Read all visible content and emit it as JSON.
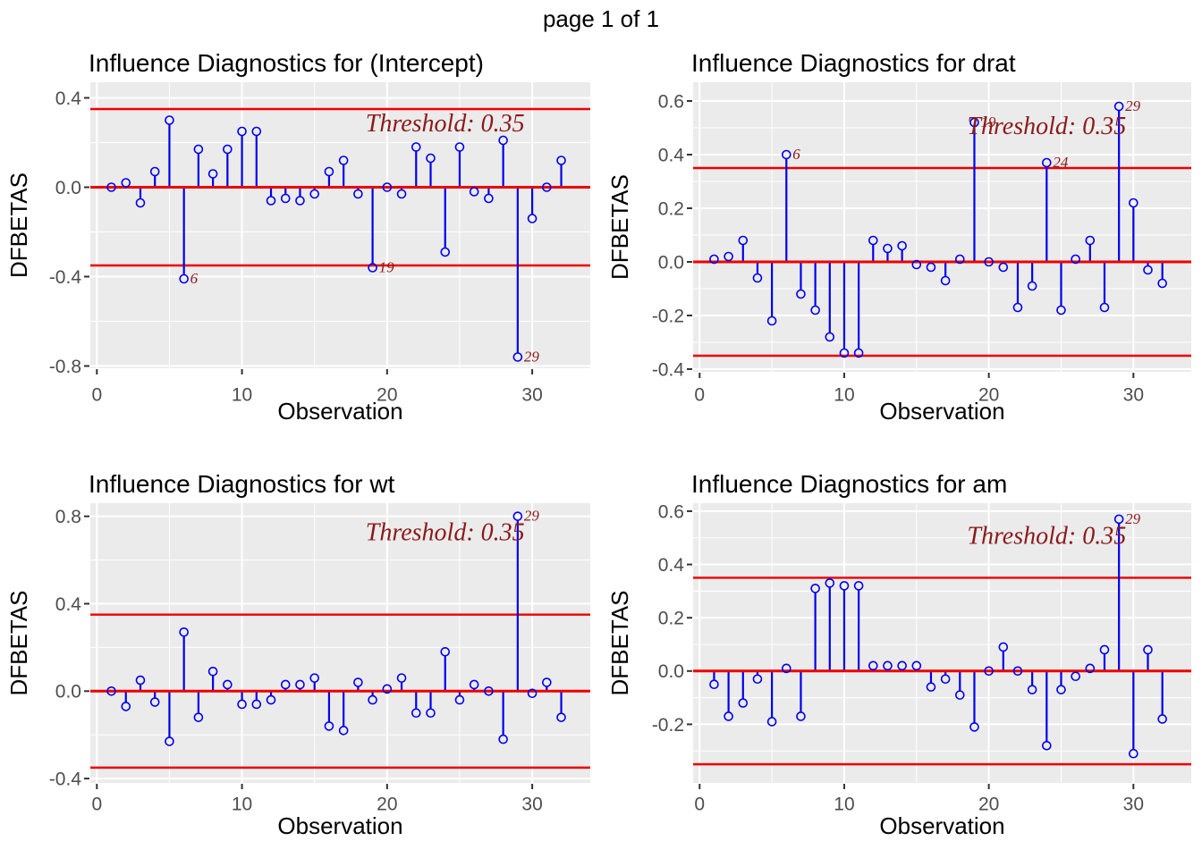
{
  "page_title": "page 1 of 1",
  "colors": {
    "stem_blue": "#0000EE",
    "threshold_red": "#EE0000",
    "annotation_darkred": "#8B1A1A",
    "panel_background": "#EBEBEB",
    "gridline_white": "#FFFFFF",
    "tick_text_gray": "#4D4D4D",
    "tick_mark_gray": "#333333",
    "title_black": "#000000"
  },
  "chart_data": [
    {
      "type": "scatter",
      "style": "stem-lollipop",
      "title": "Influence Diagnostics for (Intercept)",
      "xlabel": "Observation",
      "ylabel": "DFBETAS",
      "x_values": "observation index 1..32",
      "values": [
        0.0,
        0.02,
        -0.07,
        0.07,
        0.3,
        -0.41,
        0.17,
        0.06,
        0.17,
        0.25,
        0.25,
        -0.06,
        -0.05,
        -0.06,
        -0.03,
        0.07,
        0.12,
        -0.03,
        -0.36,
        0.0,
        -0.03,
        0.18,
        0.13,
        -0.29,
        0.18,
        -0.02,
        -0.05,
        0.21,
        -0.76,
        -0.14,
        0.0,
        0.12
      ],
      "threshold": 0.35,
      "threshold_text": "Threshold: 0.35",
      "labeled_observations": [
        6,
        19,
        29
      ],
      "xticks": [
        0,
        10,
        20,
        30
      ],
      "xtick_labels": [
        "0",
        "10",
        "20",
        "30"
      ],
      "yticks": [
        0.4,
        0.0,
        -0.4,
        -0.8
      ],
      "ytick_labels": [
        "0.4",
        "0.0",
        "-0.4",
        "-0.8"
      ],
      "xlim": [
        -0.45,
        34.0
      ],
      "ylim": [
        -0.81,
        0.47
      ],
      "annotation_center_x": 24,
      "annotation_center_y": 0.29,
      "grid": true,
      "legend": "none"
    },
    {
      "type": "scatter",
      "style": "stem-lollipop",
      "title": "Influence Diagnostics for drat",
      "xlabel": "Observation",
      "ylabel": "DFBETAS",
      "x_values": "observation index 1..32",
      "values": [
        0.01,
        0.02,
        0.08,
        -0.06,
        -0.22,
        0.4,
        -0.12,
        -0.18,
        -0.28,
        -0.34,
        -0.34,
        0.08,
        0.05,
        0.06,
        -0.01,
        -0.02,
        -0.07,
        0.01,
        0.52,
        0.0,
        -0.02,
        -0.17,
        -0.09,
        0.37,
        -0.18,
        0.01,
        0.08,
        -0.17,
        0.58,
        0.22,
        -0.03,
        -0.08
      ],
      "threshold": 0.35,
      "threshold_text": "Threshold: 0.35",
      "labeled_observations": [
        6,
        19,
        24,
        29
      ],
      "xticks": [
        0,
        10,
        20,
        30
      ],
      "xtick_labels": [
        "0",
        "10",
        "20",
        "30"
      ],
      "yticks": [
        0.6,
        0.4,
        0.2,
        0.0,
        -0.2,
        -0.4
      ],
      "ytick_labels": [
        "0.6",
        "0.4",
        "0.2",
        "0.0",
        "-0.2",
        "-0.4"
      ],
      "xlim": [
        -0.45,
        34.0
      ],
      "ylim": [
        -0.41,
        0.67
      ],
      "annotation_center_x": 24,
      "annotation_center_y": 0.51,
      "grid": true,
      "legend": "none"
    },
    {
      "type": "scatter",
      "style": "stem-lollipop",
      "title": "Influence Diagnostics for wt",
      "xlabel": "Observation",
      "ylabel": "DFBETAS",
      "x_values": "observation index 1..32",
      "values": [
        0.0,
        -0.07,
        0.05,
        -0.05,
        -0.23,
        0.27,
        -0.12,
        0.09,
        0.03,
        -0.06,
        -0.06,
        -0.04,
        0.03,
        0.03,
        0.06,
        -0.16,
        -0.18,
        0.04,
        -0.04,
        0.01,
        0.06,
        -0.1,
        -0.1,
        0.18,
        -0.04,
        0.03,
        0.0,
        -0.22,
        0.8,
        -0.01,
        0.04,
        -0.12
      ],
      "threshold": 0.35,
      "threshold_text": "Threshold: 0.35",
      "labeled_observations": [
        29
      ],
      "xticks": [
        0,
        10,
        20,
        30
      ],
      "xtick_labels": [
        "0",
        "10",
        "20",
        "30"
      ],
      "yticks": [
        0.8,
        0.4,
        0.0,
        -0.4
      ],
      "ytick_labels": [
        "0.8",
        "0.4",
        "0.0",
        "-0.4"
      ],
      "xlim": [
        -0.45,
        34.0
      ],
      "ylim": [
        -0.42,
        0.86
      ],
      "annotation_center_x": 24,
      "annotation_center_y": 0.73,
      "grid": true,
      "legend": "none"
    },
    {
      "type": "scatter",
      "style": "stem-lollipop",
      "title": "Influence Diagnostics for am",
      "xlabel": "Observation",
      "ylabel": "DFBETAS",
      "x_values": "observation index 1..32",
      "values": [
        -0.05,
        -0.17,
        -0.12,
        -0.03,
        -0.19,
        0.01,
        -0.17,
        0.31,
        0.33,
        0.32,
        0.32,
        0.02,
        0.02,
        0.02,
        0.02,
        -0.06,
        -0.03,
        -0.09,
        -0.21,
        0.0,
        0.09,
        0.0,
        -0.07,
        -0.28,
        -0.07,
        -0.02,
        0.01,
        0.08,
        0.57,
        -0.31,
        0.08,
        -0.18
      ],
      "threshold": 0.35,
      "threshold_text": "Threshold: 0.35",
      "labeled_observations": [
        29
      ],
      "xticks": [
        0,
        10,
        20,
        30
      ],
      "xtick_labels": [
        "0",
        "10",
        "20",
        "30"
      ],
      "yticks": [
        0.6,
        0.4,
        0.2,
        0.0,
        -0.2
      ],
      "ytick_labels": [
        "0.6",
        "0.4",
        "0.2",
        "0.0",
        "-0.2"
      ],
      "xlim": [
        -0.45,
        34.0
      ],
      "ylim": [
        -0.42,
        0.63
      ],
      "annotation_center_x": 24,
      "annotation_center_y": 0.51,
      "grid": true,
      "legend": "none"
    }
  ]
}
